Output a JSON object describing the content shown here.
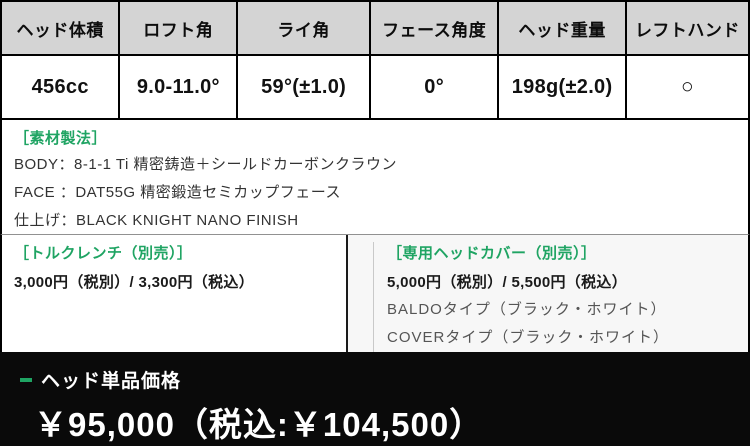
{
  "spec_table": {
    "columns": [
      {
        "header": "ヘッド体積",
        "value": "456cc"
      },
      {
        "header": "ロフト角",
        "value": "9.0-11.0°"
      },
      {
        "header": "ライ角",
        "value": "59°(±1.0)"
      },
      {
        "header": "フェース角度",
        "value": "0°"
      },
      {
        "header": "ヘッド重量",
        "value": "198g(±2.0)"
      },
      {
        "header": "レフトハンド",
        "value": "○"
      }
    ]
  },
  "material": {
    "title": "［素材製法］",
    "lines": [
      "BODY：8-1-1 Ti 精密鋳造＋シールドカーボンクラウン",
      "FACE ：DAT55G 精密鍛造セミカップフェース",
      "仕上げ：BLACK KNIGHT NANO FINISH"
    ]
  },
  "torque_wrench": {
    "title": "［トルクレンチ（別売）］",
    "price": "3,000円（税別）/ 3,300円（税込）"
  },
  "head_cover": {
    "title": "［専用ヘッドカバー（別売）］",
    "price": "5,000円（税別）/ 5,500円（税込）",
    "options": [
      "BALDOタイプ（ブラック・ホワイト）",
      "COVERタイプ（ブラック・ホワイト）"
    ]
  },
  "price_bar": {
    "label": "ヘッド単品価格",
    "price": "￥95,000（税込:￥104,500）"
  },
  "colors": {
    "accent_green": "#1fa463",
    "header_bg": "#d4d4d4",
    "bar_bg": "#0a0a0a"
  }
}
